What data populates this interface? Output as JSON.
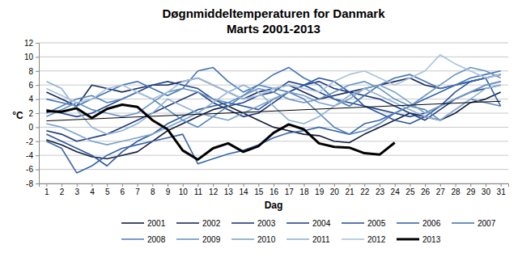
{
  "chart_data": {
    "type": "line",
    "title": "Døgnmiddeltemperaturen for Danmark",
    "subtitle": "Marts 2001-2013",
    "x_label": "Dag",
    "y_label": "°C",
    "x": [
      1,
      2,
      3,
      4,
      5,
      6,
      7,
      8,
      9,
      10,
      11,
      12,
      13,
      14,
      15,
      16,
      17,
      18,
      19,
      20,
      21,
      22,
      23,
      24,
      25,
      26,
      27,
      28,
      29,
      30,
      31
    ],
    "xlim": [
      0.5,
      31.5
    ],
    "xticks": [
      1,
      2,
      3,
      4,
      5,
      6,
      7,
      8,
      9,
      10,
      11,
      12,
      13,
      14,
      15,
      16,
      17,
      18,
      19,
      20,
      21,
      22,
      23,
      24,
      25,
      26,
      27,
      28,
      29,
      30,
      31
    ],
    "ylim": [
      -8,
      12
    ],
    "yticks": [
      -8,
      -6,
      -4,
      -2,
      0,
      2,
      4,
      6,
      8,
      10,
      12
    ],
    "grid": true,
    "legend": "bottom",
    "series": [
      {
        "name": "2001",
        "color": "#141e3c",
        "line_style": "solid",
        "values": [
          -1.8,
          -2.5,
          -3.5,
          -4.2,
          -4.5,
          -4.0,
          -3.5,
          -2.0,
          -0.5,
          0.5,
          1.5,
          2.5,
          3.0,
          2.0,
          1.0,
          0.0,
          -0.5,
          -1.0,
          -1.2,
          -2.0,
          -2.2,
          -1.0,
          0.0,
          1.0,
          2.0,
          1.5,
          1.0,
          2.0,
          3.5,
          4.0,
          5.0
        ]
      },
      {
        "name": "2002",
        "color": "#1b2a5a",
        "line_style": "solid",
        "values": [
          5.0,
          4.0,
          3.0,
          6.0,
          5.5,
          5.0,
          5.5,
          6.0,
          6.0,
          6.5,
          7.0,
          6.0,
          5.0,
          4.0,
          5.0,
          5.5,
          6.0,
          5.0,
          4.0,
          4.5,
          5.0,
          5.5,
          6.0,
          6.5,
          7.0,
          6.0,
          5.5,
          6.0,
          6.5,
          7.0,
          7.5
        ]
      },
      {
        "name": "2003",
        "color": "#1f3a7a",
        "line_style": "solid",
        "values": [
          -0.5,
          -1.0,
          -2.0,
          -1.5,
          -1.0,
          0.0,
          1.0,
          2.0,
          3.0,
          4.0,
          5.0,
          3.5,
          2.5,
          1.5,
          2.0,
          3.5,
          5.0,
          6.0,
          6.5,
          5.5,
          5.0,
          4.5,
          4.0,
          3.0,
          2.0,
          1.0,
          2.5,
          4.0,
          5.0,
          6.0,
          6.5
        ]
      },
      {
        "name": "2004",
        "color": "#24478f",
        "line_style": "solid",
        "values": [
          2.5,
          2.0,
          1.5,
          2.0,
          3.0,
          4.0,
          5.0,
          6.0,
          6.5,
          6.0,
          5.5,
          4.0,
          3.0,
          3.5,
          4.5,
          5.0,
          6.5,
          6.0,
          5.0,
          4.0,
          3.5,
          3.0,
          2.5,
          2.0,
          1.5,
          2.0,
          3.0,
          4.0,
          5.0,
          5.5,
          6.0
        ]
      },
      {
        "name": "2005",
        "color": "#2b569f",
        "line_style": "solid",
        "values": [
          -1.0,
          -2.0,
          -3.0,
          -4.0,
          -5.5,
          -3.5,
          -2.0,
          -1.0,
          0.5,
          1.5,
          2.5,
          3.0,
          3.5,
          3.0,
          2.5,
          4.0,
          5.0,
          6.0,
          7.0,
          6.5,
          5.0,
          3.0,
          2.0,
          1.0,
          0.5,
          1.5,
          3.0,
          5.0,
          6.5,
          7.0,
          7.5
        ]
      },
      {
        "name": "2006",
        "color": "#3565ab",
        "line_style": "solid",
        "values": [
          -2.0,
          -3.0,
          -6.5,
          -5.5,
          -4.0,
          -3.0,
          -2.5,
          -2.0,
          -1.5,
          -1.0,
          -5.2,
          -4.5,
          -3.8,
          -3.3,
          -2.5,
          -1.5,
          -0.8,
          -0.5,
          0.0,
          -0.5,
          -1.0,
          0.5,
          1.0,
          2.0,
          3.0,
          4.0,
          5.0,
          6.0,
          6.5,
          7.0,
          3.0
        ]
      },
      {
        "name": "2007",
        "color": "#4475b5",
        "line_style": "solid",
        "values": [
          4.0,
          3.5,
          3.0,
          4.0,
          5.0,
          6.0,
          6.5,
          5.5,
          4.5,
          5.5,
          8.0,
          8.5,
          6.5,
          5.0,
          6.0,
          7.5,
          8.5,
          7.0,
          6.0,
          4.0,
          3.0,
          4.5,
          6.0,
          7.0,
          7.5,
          6.5,
          5.5,
          6.0,
          7.0,
          7.5,
          8.0
        ]
      },
      {
        "name": "2008",
        "color": "#5585bd",
        "line_style": "solid",
        "values": [
          2.0,
          3.0,
          4.0,
          4.5,
          3.5,
          4.0,
          5.0,
          4.0,
          2.5,
          1.0,
          0.0,
          1.5,
          3.0,
          4.5,
          6.0,
          5.5,
          5.0,
          4.0,
          2.0,
          0.0,
          -1.0,
          -0.5,
          0.5,
          2.0,
          3.0,
          2.5,
          1.0,
          2.5,
          4.0,
          3.5,
          3.0
        ]
      },
      {
        "name": "2009",
        "color": "#6894c4",
        "line_style": "solid",
        "values": [
          1.5,
          2.5,
          3.5,
          2.5,
          2.0,
          1.5,
          2.0,
          3.5,
          5.0,
          5.5,
          5.0,
          4.0,
          3.5,
          4.5,
          5.5,
          5.0,
          4.0,
          3.5,
          4.0,
          5.0,
          6.0,
          6.5,
          5.5,
          4.0,
          3.0,
          4.5,
          6.0,
          7.5,
          8.5,
          8.0,
          7.0
        ]
      },
      {
        "name": "2010",
        "color": "#7ba2cb",
        "line_style": "solid",
        "values": [
          0.5,
          0.0,
          -1.0,
          -2.0,
          -2.5,
          -2.0,
          -1.5,
          -1.0,
          0.0,
          1.0,
          2.0,
          1.5,
          1.0,
          2.0,
          3.0,
          4.0,
          5.0,
          4.5,
          3.5,
          3.0,
          4.0,
          5.5,
          6.0,
          5.0,
          3.5,
          2.0,
          3.0,
          4.0,
          5.0,
          6.0,
          6.5
        ]
      },
      {
        "name": "2011",
        "color": "#8fb1d3",
        "line_style": "solid",
        "values": [
          6.5,
          5.5,
          2.5,
          0.0,
          -1.0,
          -0.5,
          0.5,
          2.0,
          4.0,
          3.0,
          2.0,
          3.5,
          5.0,
          6.0,
          5.0,
          3.0,
          1.0,
          0.5,
          1.5,
          3.0,
          4.5,
          5.5,
          4.5,
          3.5,
          2.5,
          1.5,
          1.0,
          2.5,
          4.0,
          5.5,
          6.0
        ]
      },
      {
        "name": "2012",
        "color": "#a8c2dc",
        "line_style": "solid",
        "values": [
          5.5,
          4.5,
          3.5,
          4.0,
          5.5,
          6.0,
          5.0,
          4.0,
          5.0,
          6.5,
          7.0,
          6.0,
          5.0,
          4.0,
          4.5,
          5.5,
          6.0,
          5.5,
          5.0,
          6.5,
          7.5,
          8.0,
          7.0,
          6.0,
          7.0,
          8.0,
          10.3,
          9.0,
          8.0,
          7.0,
          7.5
        ]
      },
      {
        "name": "2013",
        "color": "#000000",
        "line_style": "thick",
        "values": [
          2.3,
          2.2,
          2.7,
          1.3,
          2.6,
          3.2,
          2.9,
          1.0,
          -0.3,
          -3.3,
          -4.6,
          -3.0,
          -2.3,
          -3.5,
          -2.7,
          -0.8,
          0.4,
          -0.3,
          -2.3,
          -2.8,
          -2.9,
          -3.7,
          -3.9,
          -2.2,
          null,
          null,
          null,
          null,
          null,
          null,
          null
        ]
      }
    ],
    "trendline": {
      "x": [
        1,
        31
      ],
      "values": [
        0.9,
        3.7
      ],
      "color": "#000000"
    }
  }
}
